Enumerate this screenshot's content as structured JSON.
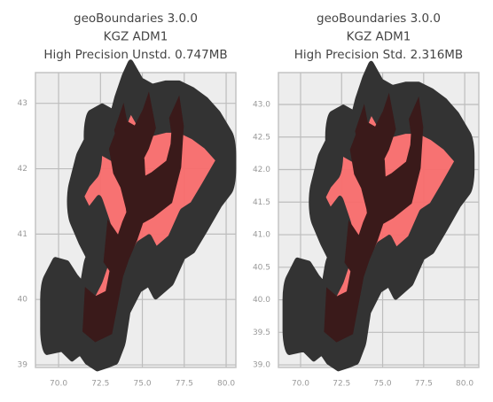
{
  "chart_data": [
    {
      "type": "map",
      "title": [
        "geoBoundaries 3.0.0",
        "KGZ ADM1",
        "High Precision Unstd. 0.747MB"
      ],
      "color": "#f86c6c",
      "xlim": [
        68.62,
        80.58
      ],
      "ylim": [
        38.96,
        43.47
      ],
      "xticks": [
        {
          "value": 70,
          "label": "70.0"
        },
        72.5,
        {
          "value": 75,
          "label": "75.0"
        },
        77.5,
        {
          "value": 80,
          "label": "80.0"
        }
      ],
      "yticks": [
        39,
        40,
        41,
        42,
        43
      ],
      "grid": true
    },
    {
      "type": "map",
      "title": [
        "geoBoundaries 3.0.0",
        "KGZ ADM1",
        "High Precision Std. 2.316MB"
      ],
      "color": "#f86c6c",
      "xlim": [
        68.65,
        80.86
      ],
      "ylim": [
        38.96,
        43.49
      ],
      "xticks": [
        {
          "value": 70,
          "label": "70.0"
        },
        72.5,
        {
          "value": 75,
          "label": "75.0"
        },
        77.5,
        {
          "value": 80,
          "label": "80.0"
        }
      ],
      "yticks": [
        {
          "value": 39,
          "label": "39.0"
        },
        39.5,
        {
          "value": 40,
          "label": "40.0"
        },
        40.5,
        {
          "value": 41,
          "label": "41.0"
        },
        41.5,
        {
          "value": 42,
          "label": "42.0"
        },
        42.5,
        {
          "value": 43,
          "label": "43.0"
        }
      ],
      "grid": true
    }
  ]
}
